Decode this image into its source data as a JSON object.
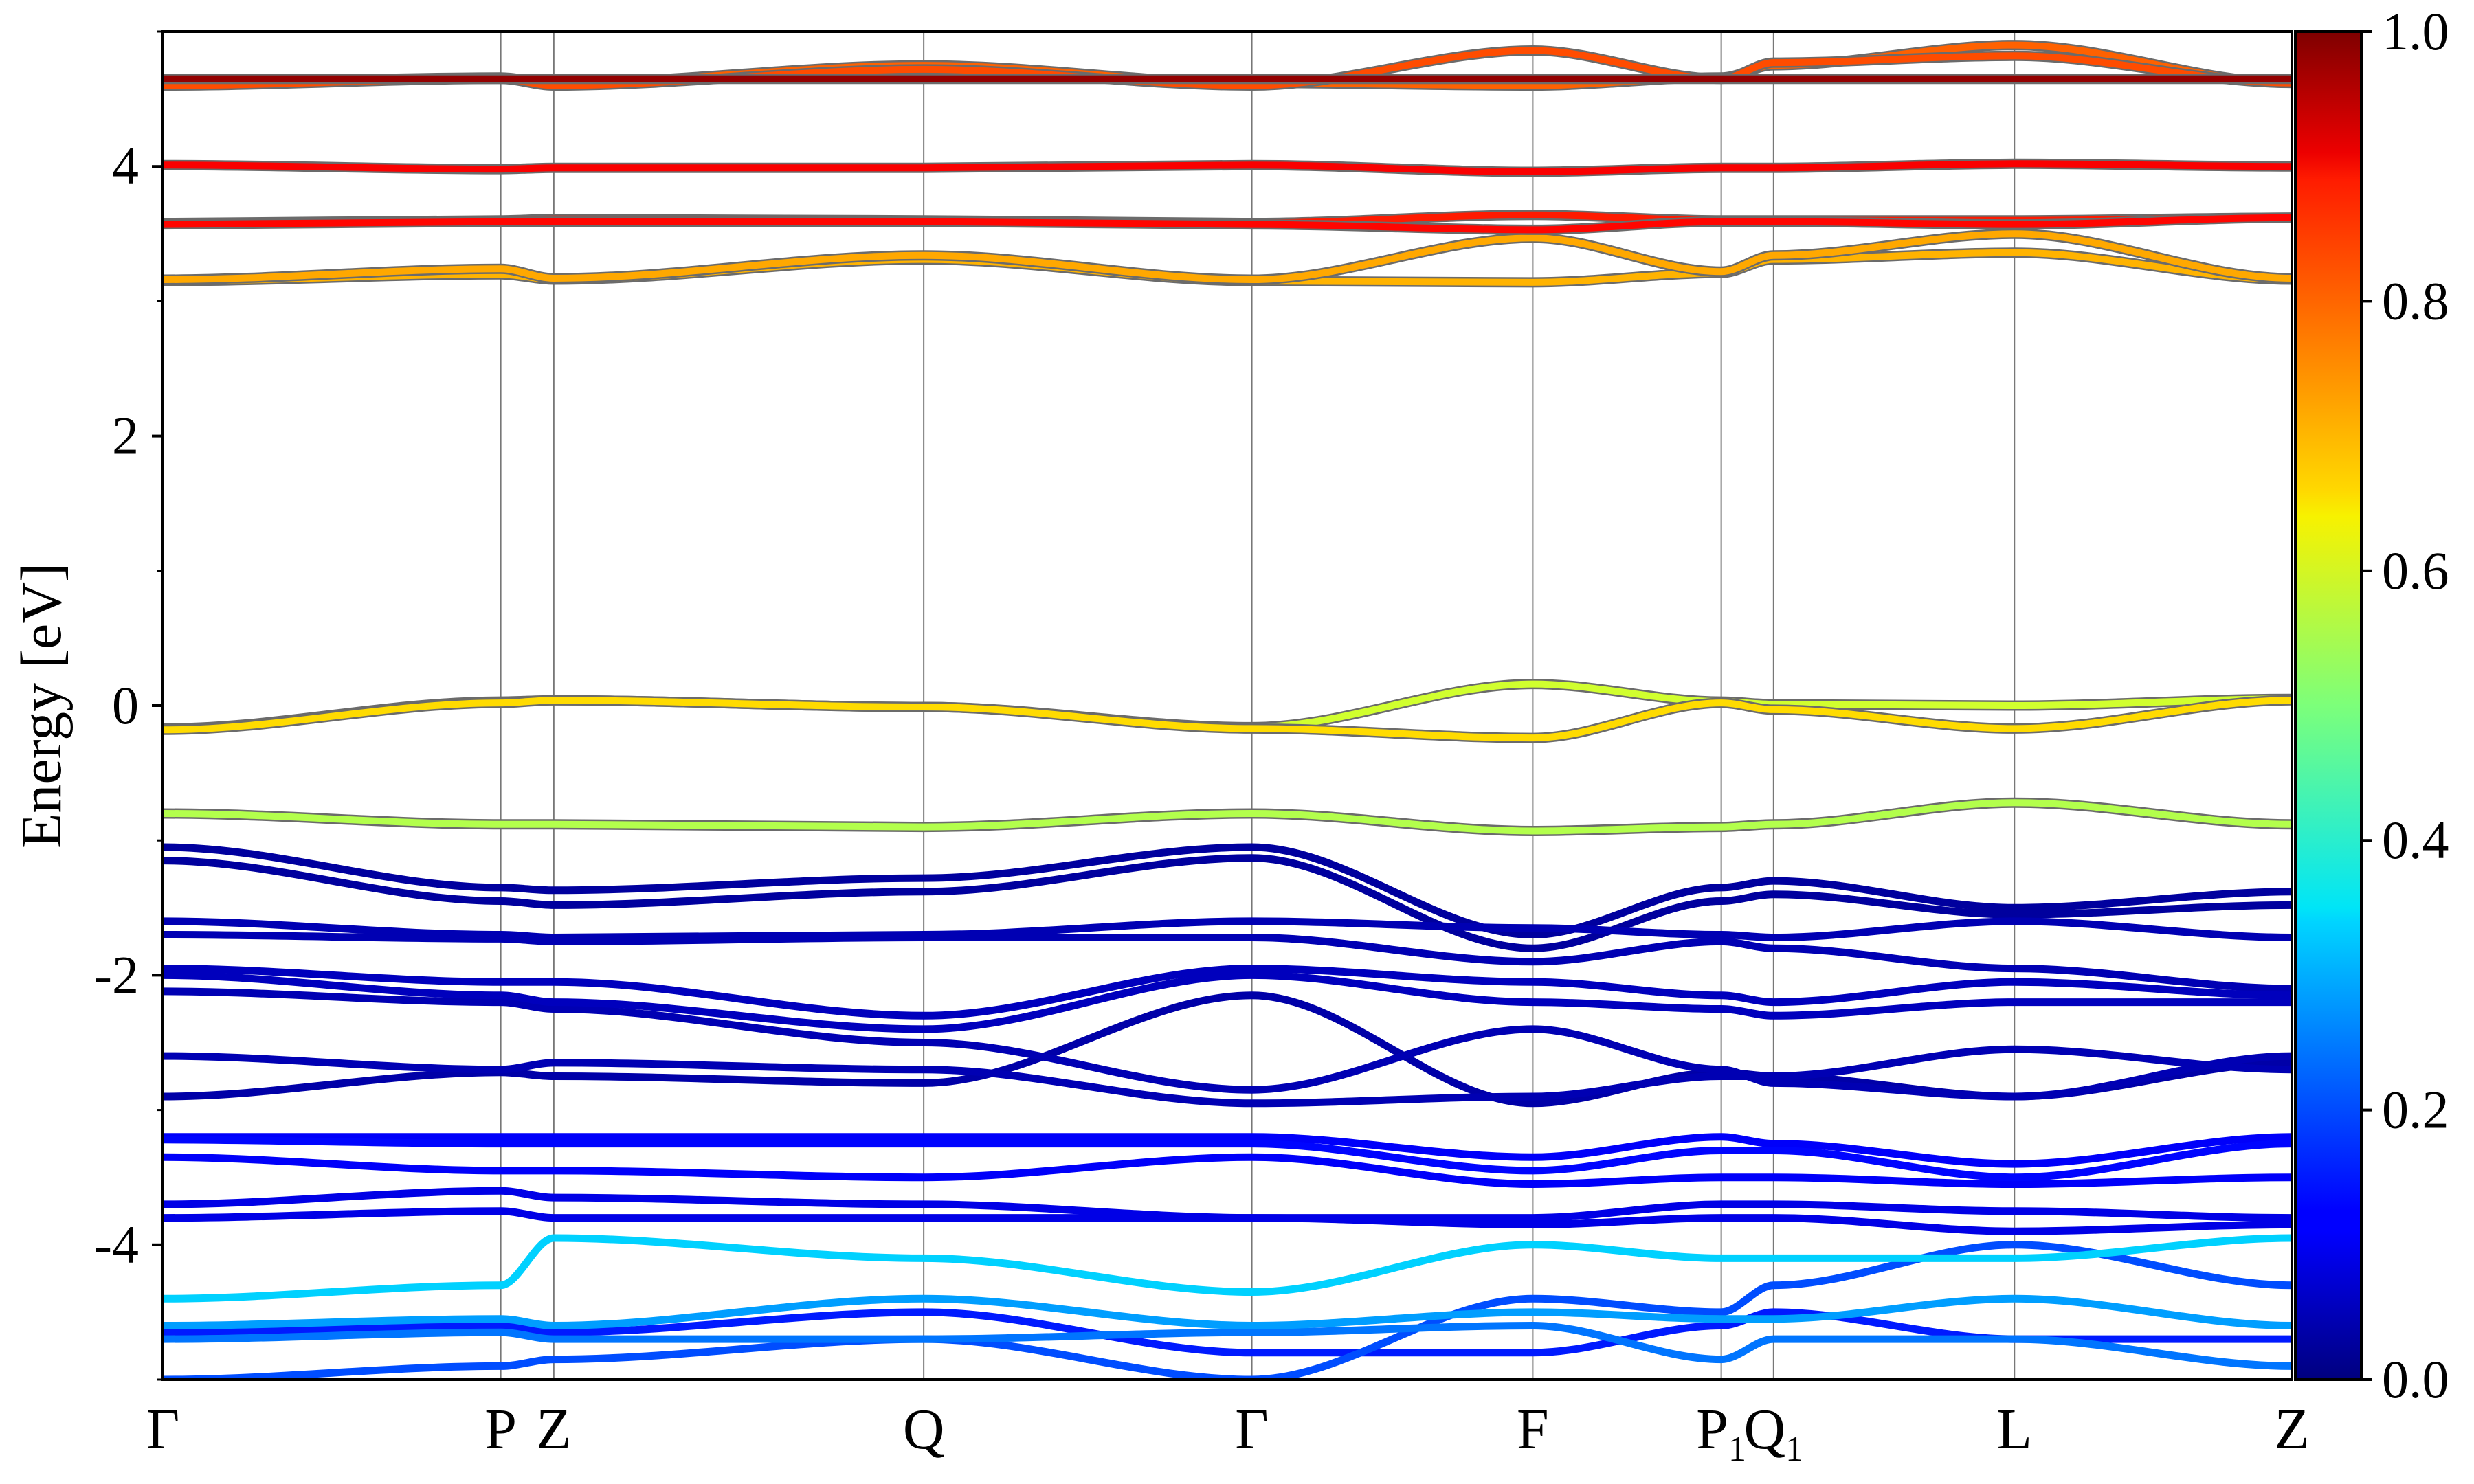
{
  "chart_data": {
    "type": "line",
    "title": "",
    "ylabel": "Energy [eV]",
    "xlabel": "",
    "ylim": [
      -5,
      5
    ],
    "xlim": [
      0,
      6.1
    ],
    "grid": false,
    "legend": "none",
    "y_ticks": [
      {
        "value": 4,
        "label": "4"
      },
      {
        "value": 2,
        "label": "2"
      },
      {
        "value": 0,
        "label": "0"
      },
      {
        "value": -2,
        "label": "-2"
      },
      {
        "value": -4,
        "label": "-4"
      }
    ],
    "y_minor_ticks": [
      5,
      3,
      1,
      -1,
      -3,
      -5
    ],
    "kpoints": [
      {
        "x": 0.0,
        "label": "Γ",
        "sub": ""
      },
      {
        "x": 0.968,
        "label": "P",
        "sub": ""
      },
      {
        "x": 1.12,
        "label": "Z",
        "sub": ""
      },
      {
        "x": 2.18,
        "label": "Q",
        "sub": ""
      },
      {
        "x": 3.12,
        "label": "Γ",
        "sub": ""
      },
      {
        "x": 3.925,
        "label": "F",
        "sub": ""
      },
      {
        "x": 4.465,
        "label": "P",
        "sub": "1"
      },
      {
        "x": 4.615,
        "label": "Q",
        "sub": "1"
      },
      {
        "x": 5.305,
        "label": "L",
        "sub": ""
      },
      {
        "x": 6.1,
        "label": "Z",
        "sub": ""
      }
    ],
    "colorbar": {
      "colormap": "jet",
      "range": [
        0.0,
        1.0
      ],
      "ticks": [
        {
          "value": 1.0,
          "label": "1.0"
        },
        {
          "value": 0.8,
          "label": "0.8"
        },
        {
          "value": 0.6,
          "label": "0.6"
        },
        {
          "value": 0.4,
          "label": "0.4"
        },
        {
          "value": 0.2,
          "label": "0.2"
        },
        {
          "value": 0.0,
          "label": "0.0"
        }
      ]
    },
    "bands": [
      {
        "c": 0.98,
        "y": [
          4.65,
          4.65,
          4.65,
          4.65,
          4.65,
          4.65,
          4.65,
          4.65,
          4.65,
          4.65
        ]
      },
      {
        "c": 0.78,
        "y": [
          4.62,
          4.66,
          4.62,
          4.75,
          4.62,
          4.6,
          4.66,
          4.75,
          4.9,
          4.62
        ]
      },
      {
        "c": 0.8,
        "y": [
          4.6,
          4.65,
          4.6,
          4.72,
          4.6,
          4.86,
          4.65,
          4.77,
          4.82,
          4.62
        ]
      },
      {
        "c": 0.88,
        "y": [
          4.01,
          3.98,
          3.99,
          3.99,
          4.01,
          3.96,
          3.99,
          3.99,
          4.02,
          4.0
        ]
      },
      {
        "c": 0.85,
        "y": [
          3.58,
          3.6,
          3.61,
          3.6,
          3.58,
          3.64,
          3.6,
          3.6,
          3.6,
          3.62
        ]
      },
      {
        "c": 0.87,
        "y": [
          3.57,
          3.59,
          3.59,
          3.59,
          3.57,
          3.53,
          3.59,
          3.59,
          3.57,
          3.62
        ]
      },
      {
        "c": 0.71,
        "y": [
          3.16,
          3.24,
          3.17,
          3.34,
          3.16,
          3.47,
          3.22,
          3.34,
          3.5,
          3.17
        ]
      },
      {
        "c": 0.7,
        "y": [
          3.15,
          3.2,
          3.16,
          3.31,
          3.15,
          3.14,
          3.21,
          3.31,
          3.36,
          3.16
        ]
      },
      {
        "c": 0.58,
        "y": [
          -0.17,
          0.03,
          0.04,
          -0.01,
          -0.16,
          0.16,
          0.03,
          0.01,
          0.0,
          0.05
        ]
      },
      {
        "c": 0.66,
        "y": [
          -0.18,
          0.02,
          0.04,
          -0.01,
          -0.17,
          -0.24,
          0.02,
          -0.03,
          -0.17,
          0.04
        ]
      },
      {
        "c": 0.55,
        "y": [
          -0.8,
          -0.88,
          -0.88,
          -0.9,
          -0.8,
          -0.93,
          -0.9,
          -0.88,
          -0.72,
          -0.88
        ]
      },
      {
        "c": 0.03,
        "y": [
          -1.05,
          -1.35,
          -1.37,
          -1.28,
          -1.05,
          -1.7,
          -1.35,
          -1.3,
          -1.5,
          -1.38
        ]
      },
      {
        "c": 0.03,
        "y": [
          -1.15,
          -1.45,
          -1.48,
          -1.38,
          -1.13,
          -1.8,
          -1.45,
          -1.4,
          -1.55,
          -1.48
        ]
      },
      {
        "c": 0.05,
        "y": [
          -1.6,
          -1.7,
          -1.72,
          -1.7,
          -1.6,
          -1.65,
          -1.7,
          -1.72,
          -1.6,
          -1.72
        ]
      },
      {
        "c": 0.05,
        "y": [
          -1.7,
          -1.73,
          -1.75,
          -1.72,
          -1.72,
          -1.9,
          -1.75,
          -1.8,
          -1.95,
          -2.1
        ]
      },
      {
        "c": 0.06,
        "y": [
          -1.95,
          -2.05,
          -2.05,
          -2.3,
          -1.95,
          -2.05,
          -2.15,
          -2.2,
          -2.05,
          -2.15
        ]
      },
      {
        "c": 0.06,
        "y": [
          -2.0,
          -2.15,
          -2.2,
          -2.4,
          -2.0,
          -2.2,
          -2.25,
          -2.3,
          -2.2,
          -2.2
        ]
      },
      {
        "c": 0.05,
        "y": [
          -2.12,
          -2.2,
          -2.25,
          -2.5,
          -2.85,
          -2.4,
          -2.7,
          -2.8,
          -2.9,
          -2.6
        ]
      },
      {
        "c": 0.05,
        "y": [
          -2.6,
          -2.7,
          -2.65,
          -2.7,
          -2.95,
          -2.9,
          -2.75,
          -2.75,
          -2.55,
          -2.7
        ]
      },
      {
        "c": 0.04,
        "y": [
          -2.9,
          -2.72,
          -2.75,
          -2.8,
          -2.15,
          -2.95,
          -2.72,
          -2.75,
          -2.9,
          -2.65
        ]
      },
      {
        "c": 0.12,
        "y": [
          -3.2,
          -3.2,
          -3.2,
          -3.2,
          -3.2,
          -3.35,
          -3.2,
          -3.25,
          -3.4,
          -3.2
        ]
      },
      {
        "c": 0.13,
        "y": [
          -3.22,
          -3.25,
          -3.25,
          -3.25,
          -3.25,
          -3.45,
          -3.3,
          -3.3,
          -3.5,
          -3.25
        ]
      },
      {
        "c": 0.12,
        "y": [
          -3.35,
          -3.45,
          -3.45,
          -3.5,
          -3.35,
          -3.55,
          -3.5,
          -3.5,
          -3.55,
          -3.5
        ]
      },
      {
        "c": 0.1,
        "y": [
          -3.7,
          -3.6,
          -3.65,
          -3.7,
          -3.8,
          -3.8,
          -3.7,
          -3.7,
          -3.75,
          -3.8
        ]
      },
      {
        "c": 0.1,
        "y": [
          -3.8,
          -3.75,
          -3.8,
          -3.8,
          -3.8,
          -3.85,
          -3.8,
          -3.8,
          -3.9,
          -3.85
        ]
      },
      {
        "c": 0.33,
        "y": [
          -4.4,
          -4.3,
          -3.95,
          -4.1,
          -4.35,
          -4.0,
          -4.1,
          -4.1,
          -4.1,
          -3.95
        ]
      },
      {
        "c": 0.28,
        "y": [
          -4.6,
          -4.55,
          -4.6,
          -4.4,
          -4.6,
          -4.5,
          -4.55,
          -4.55,
          -4.4,
          -4.6
        ]
      },
      {
        "c": 0.24,
        "y": [
          -4.7,
          -4.65,
          -4.7,
          -4.7,
          -4.65,
          -4.6,
          -4.85,
          -4.7,
          -4.7,
          -4.9
        ]
      },
      {
        "c": 0.15,
        "y": [
          -4.65,
          -4.6,
          -4.65,
          -4.5,
          -4.8,
          -4.8,
          -4.6,
          -4.5,
          -4.7,
          -4.7
        ]
      },
      {
        "c": 0.2,
        "y": [
          -5.0,
          -4.9,
          -4.85,
          -4.7,
          -5.0,
          -4.4,
          -4.5,
          -4.3,
          -4.0,
          -4.3
        ]
      }
    ]
  }
}
